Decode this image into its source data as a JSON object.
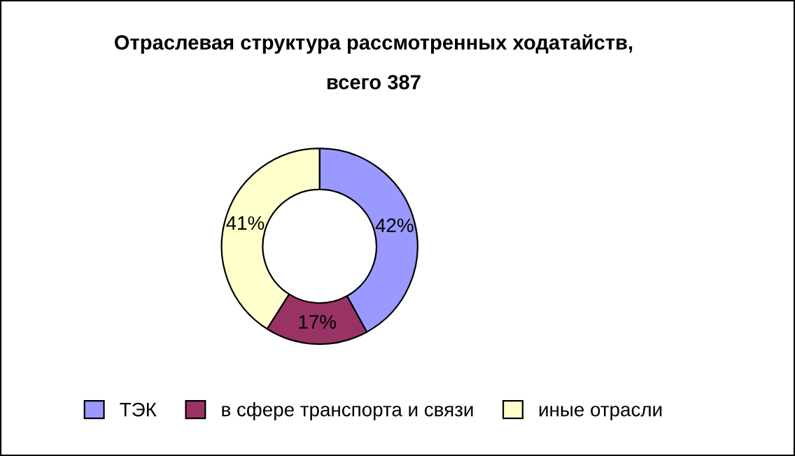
{
  "chart_data": {
    "type": "donut",
    "title": "Отраслевая структура рассмотренных ходатайств,\nвсего 387",
    "categories": [
      "ТЭК",
      "в сфере транспорта и связи",
      "иные отрасли"
    ],
    "values": [
      42,
      17,
      41
    ],
    "value_labels": [
      "42%",
      "17%",
      "41%"
    ],
    "colors": [
      "#9999ff",
      "#993366",
      "#ffffcc"
    ],
    "legend": "bottom"
  }
}
